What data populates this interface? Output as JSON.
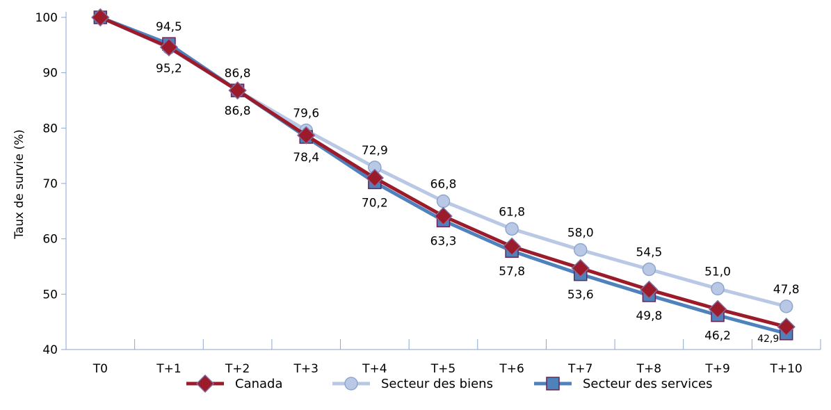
{
  "chart_data": {
    "type": "line",
    "categories": [
      "T0",
      "T+1",
      "T+2",
      "T+3",
      "T+4",
      "T+5",
      "T+6",
      "T+7",
      "T+8",
      "T+9",
      "T+10"
    ],
    "ylabel": "Taux de survie (%)",
    "ylim": [
      40,
      100
    ],
    "yticks": [
      40,
      50,
      60,
      70,
      80,
      90,
      100
    ],
    "grid": false,
    "legend_position": "bottom",
    "series": [
      {
        "name": "Secteur des services",
        "color": "#4f81bd",
        "marker": "square",
        "values": [
          100,
          95.2,
          86.8,
          78.4,
          70.2,
          63.3,
          57.8,
          53.6,
          49.8,
          46.2,
          42.9
        ],
        "labels": [
          "",
          "95,2",
          "86,8",
          "78,4",
          "70,2",
          "63,3",
          "57,8",
          "53,6",
          "49,8",
          "46,2",
          "42,9"
        ]
      },
      {
        "name": "Secteur des biens",
        "color": "#b9c8e4",
        "marker": "circle",
        "values": [
          100,
          94.5,
          86.8,
          79.6,
          72.9,
          66.8,
          61.8,
          58.0,
          54.5,
          51.0,
          47.8
        ],
        "labels": [
          "",
          "94,5",
          "86,8",
          "79,6",
          "72,9",
          "66,8",
          "61,8",
          "58,0",
          "54,5",
          "51,0",
          "47,8"
        ]
      },
      {
        "name": "Canada",
        "color": "#9b1b2a",
        "marker": "diamond",
        "values": [
          100,
          94.6,
          86.8,
          78.7,
          71.0,
          64.1,
          58.6,
          54.7,
          50.8,
          47.3,
          44.1
        ],
        "labels": []
      }
    ],
    "legend_order": [
      "Canada",
      "Secteur des biens",
      "Secteur des services"
    ]
  }
}
